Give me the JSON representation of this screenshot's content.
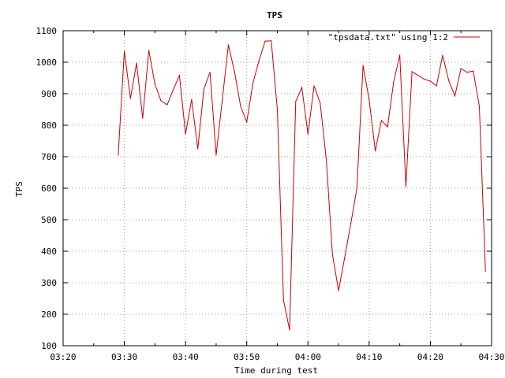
{
  "chart_data": {
    "type": "line",
    "title": "TPS",
    "xlabel": "Time during test",
    "ylabel": "TPS",
    "xlim": [
      "03:20",
      "04:30"
    ],
    "ylim": [
      100,
      1100
    ],
    "x_ticks": [
      "03:20",
      "03:30",
      "03:40",
      "03:50",
      "04:00",
      "04:10",
      "04:20",
      "04:30"
    ],
    "y_ticks": [
      100,
      200,
      300,
      400,
      500,
      600,
      700,
      800,
      900,
      1000,
      1100
    ],
    "grid": true,
    "legend_position": "top-right",
    "series": [
      {
        "name": "\"tpsdata.txt\" using 1:2",
        "color": "#cc0000",
        "points": [
          [
            "03:29",
            705
          ],
          [
            "03:30",
            1035
          ],
          [
            "03:31",
            885
          ],
          [
            "03:32",
            997
          ],
          [
            "03:33",
            822
          ],
          [
            "03:34",
            1038
          ],
          [
            "03:35",
            930
          ],
          [
            "03:36",
            877
          ],
          [
            "03:37",
            865
          ],
          [
            "03:38",
            913
          ],
          [
            "03:39",
            958
          ],
          [
            "03:40",
            772
          ],
          [
            "03:41",
            882
          ],
          [
            "03:42",
            725
          ],
          [
            "03:43",
            915
          ],
          [
            "03:44",
            968
          ],
          [
            "03:45",
            705
          ],
          [
            "03:46",
            880
          ],
          [
            "03:47",
            1055
          ],
          [
            "03:48",
            970
          ],
          [
            "03:49",
            860
          ],
          [
            "03:50",
            810
          ],
          [
            "03:51",
            933
          ],
          [
            "03:52",
            1005
          ],
          [
            "03:53",
            1067
          ],
          [
            "03:54",
            1068
          ],
          [
            "03:55",
            850
          ],
          [
            "03:56",
            245
          ],
          [
            "03:57",
            150
          ],
          [
            "03:58",
            875
          ],
          [
            "03:59",
            920
          ],
          [
            "04:00",
            772
          ],
          [
            "04:01",
            925
          ],
          [
            "04:02",
            870
          ],
          [
            "04:03",
            690
          ],
          [
            "04:04",
            390
          ],
          [
            "04:05",
            275
          ],
          [
            "04:06",
            380
          ],
          [
            "04:07",
            488
          ],
          [
            "04:08",
            600
          ],
          [
            "04:09",
            990
          ],
          [
            "04:10",
            880
          ],
          [
            "04:11",
            718
          ],
          [
            "04:12",
            815
          ],
          [
            "04:13",
            795
          ],
          [
            "04:14",
            937
          ],
          [
            "04:15",
            1023
          ],
          [
            "04:16",
            605
          ],
          [
            "04:17",
            970
          ],
          [
            "04:18",
            958
          ],
          [
            "04:19",
            946
          ],
          [
            "04:20",
            940
          ],
          [
            "04:21",
            925
          ],
          [
            "04:22",
            1022
          ],
          [
            "04:23",
            942
          ],
          [
            "04:24",
            893
          ],
          [
            "04:25",
            980
          ],
          [
            "04:26",
            968
          ],
          [
            "04:27",
            972
          ],
          [
            "04:28",
            860
          ],
          [
            "04:29",
            337
          ]
        ]
      }
    ]
  }
}
